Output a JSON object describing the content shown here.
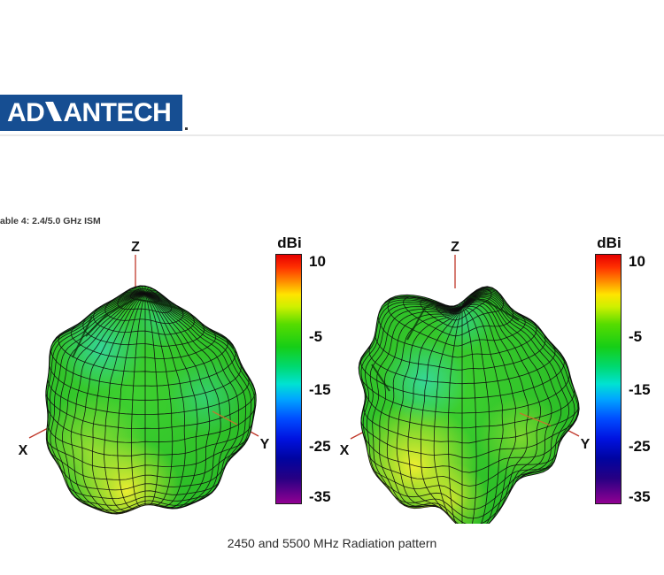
{
  "page": {
    "background": "#ffffff"
  },
  "logo": {
    "prefix": "AD",
    "suffix": "ANTECH",
    "full_text": "ADVANTECH",
    "bg_color": "#164e92",
    "text_color": "#ffffff"
  },
  "section_label": "able 4: 2.4/5.0 GHz ISM",
  "caption": "2450 and 5500 MHz Radiation pattern",
  "colorbar": {
    "title": "dBi",
    "ticks": [
      {
        "label": "10",
        "pos": 0.032
      },
      {
        "label": "-5",
        "pos": 0.332
      },
      {
        "label": "-15",
        "pos": 0.545
      },
      {
        "label": "-25",
        "pos": 0.77
      },
      {
        "label": "-35",
        "pos": 0.972
      }
    ],
    "gradient": [
      [
        0.0,
        "#e60000"
      ],
      [
        0.05,
        "#ff3000"
      ],
      [
        0.11,
        "#ff9000"
      ],
      [
        0.16,
        "#ffe400"
      ],
      [
        0.21,
        "#cdf000"
      ],
      [
        0.28,
        "#55dc00"
      ],
      [
        0.37,
        "#16ce16"
      ],
      [
        0.45,
        "#00d970"
      ],
      [
        0.52,
        "#00e2d2"
      ],
      [
        0.58,
        "#00a6ff"
      ],
      [
        0.66,
        "#004cff"
      ],
      [
        0.74,
        "#0012e0"
      ],
      [
        0.82,
        "#0004a0"
      ],
      [
        0.9,
        "#270083"
      ],
      [
        1.0,
        "#910092"
      ]
    ]
  },
  "palette": {
    "surface_green": "#3ed130",
    "surface_green_edge": "#2abc26",
    "hotspot_yellow": "#f7f130",
    "warm_yellow_green": "#d9ee37",
    "cool_cyan": "#35dcc4",
    "mesh": "#0d0d0d",
    "axis_red": "#c0392b",
    "axis_orange": "#cc6f2e"
  },
  "figures": [
    {
      "name": "2450 MHz radiation pattern",
      "axis_labels": {
        "x": "X",
        "y": "Y",
        "z": "Z"
      }
    },
    {
      "name": "5500 MHz radiation pattern",
      "axis_labels": {
        "x": "X",
        "y": "Y",
        "z": "Z"
      }
    }
  ],
  "chart_data": {
    "type": "3d-surface-pair",
    "subtype": "antenna-radiation-pattern",
    "section_label": "able 4: 2.4/5.0 GHz ISM",
    "caption": "2450 and 5500 MHz Radiation pattern",
    "colorbar": {
      "label": "dBi",
      "ticks": [
        10,
        -5,
        -15,
        -25,
        -35
      ],
      "top_value": 10,
      "bottom_value": -35
    },
    "figures": [
      {
        "label": "2450 MHz",
        "axes": [
          "X",
          "Y",
          "Z"
        ],
        "gain_color_reading": "near-spherical omnidirectional surface; mostly green (~-5 to 0 dBi); yellow maximum region at bottom (~+2 to +4 dBi); cyan minima upper-left and mid-right (~-10 to -13 dBi)"
      },
      {
        "label": "5500 MHz",
        "axes": [
          "X",
          "Y",
          "Z"
        ],
        "gain_color_reading": "lumpier near-spherical surface; mostly green (~-5 to 0 dBi); yellow maximum region lower-left (~+2 to +4 dBi); cyan minima mid-left and near top (~-10 to -13 dBi)"
      }
    ]
  }
}
